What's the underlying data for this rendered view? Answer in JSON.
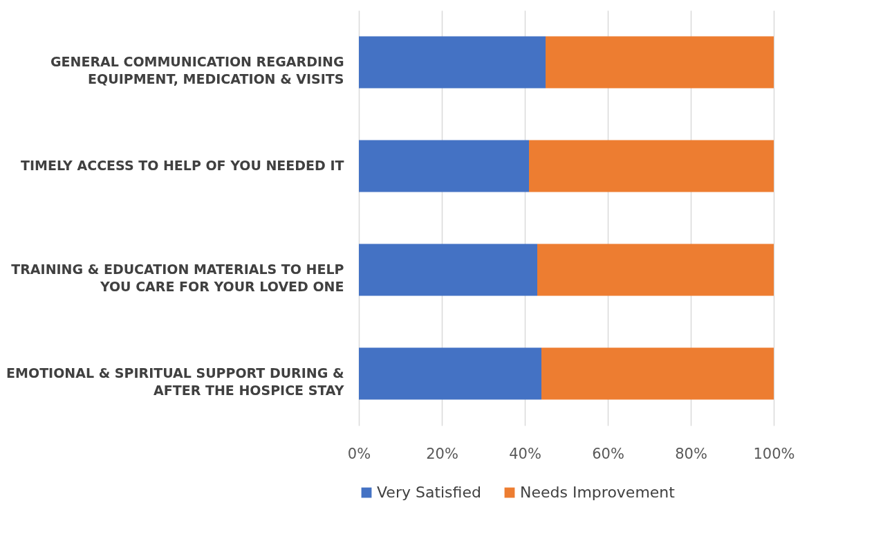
{
  "chart_data": {
    "type": "bar",
    "orientation": "horizontal",
    "stacked": true,
    "categories": [
      "GENERAL COMMUNICATION REGARDING EQUIPMENT, MEDICATION & VISITS",
      "TIMELY ACCESS TO HELP OF YOU NEEDED IT",
      "TRAINING & EDUCATION MATERIALS TO HELP YOU CARE FOR YOUR LOVED ONE",
      "EMOTIONAL & SPIRITUAL SUPPORT DURING & AFTER THE HOSPICE STAY"
    ],
    "series": [
      {
        "name": "Very Satisfied",
        "color": "#4472c4",
        "values": [
          45,
          41,
          43,
          44
        ]
      },
      {
        "name": "Needs Improvement",
        "color": "#ed7d31",
        "values": [
          55,
          59,
          57,
          56
        ]
      }
    ],
    "xlim": [
      0,
      100
    ],
    "xticks": [
      {
        "value": 0,
        "label": "0%"
      },
      {
        "value": 20,
        "label": "20%"
      },
      {
        "value": 40,
        "label": "40%"
      },
      {
        "value": 60,
        "label": "60%"
      },
      {
        "value": 80,
        "label": "80%"
      },
      {
        "value": 100,
        "label": "100%"
      }
    ],
    "grid": "x",
    "legend": "bottom"
  }
}
